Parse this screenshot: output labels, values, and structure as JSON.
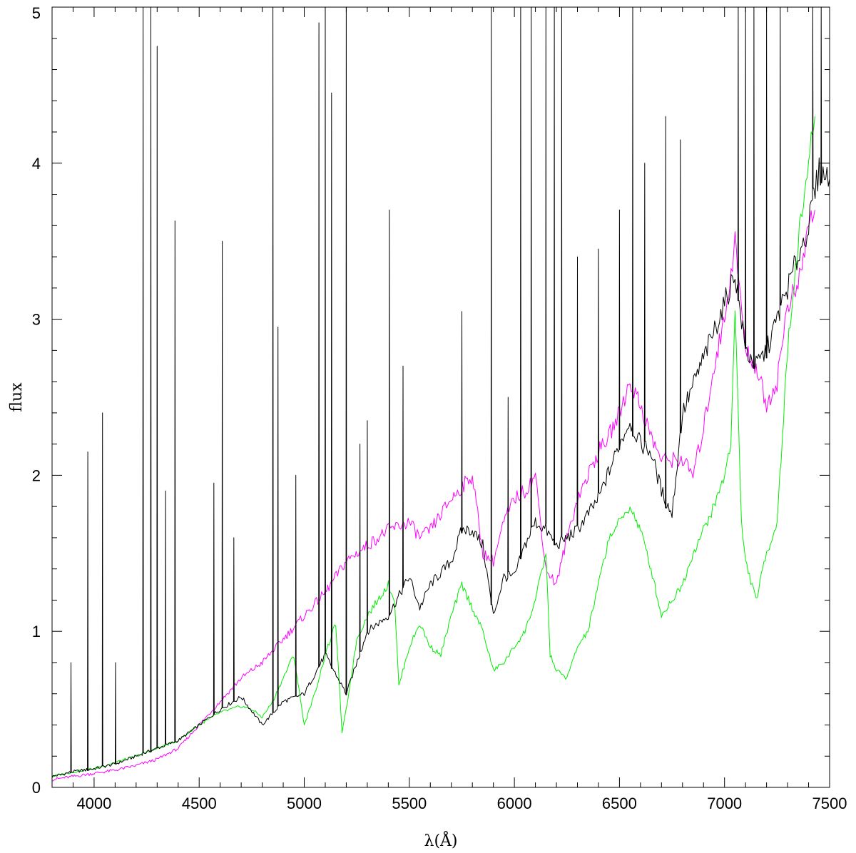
{
  "chart_data": {
    "type": "line",
    "xlabel": "λ(Å)",
    "ylabel": "flux",
    "xlim": [
      3800,
      7500
    ],
    "ylim": [
      0,
      5
    ],
    "x_ticks": [
      4000,
      4500,
      5000,
      5500,
      6000,
      6500,
      7000,
      7500
    ],
    "y_ticks": [
      0,
      1,
      2,
      3,
      4,
      5
    ],
    "grid": false,
    "legend": "none",
    "series": [
      {
        "color": "#000000",
        "style": "solid with many narrow emission spikes",
        "x": [
          3800,
          3900,
          4000,
          4100,
          4200,
          4300,
          4400,
          4500,
          4600,
          4700,
          4800,
          4900,
          5000,
          5100,
          5200,
          5300,
          5400,
          5500,
          5550,
          5600,
          5700,
          5750,
          5800,
          5850,
          5900,
          5950,
          6000,
          6050,
          6100,
          6150,
          6200,
          6250,
          6300,
          6400,
          6500,
          6550,
          6600,
          6650,
          6700,
          6750,
          6800,
          6900,
          7000,
          7050,
          7100,
          7150,
          7200,
          7250,
          7300,
          7350,
          7400,
          7450,
          7500
        ],
        "y": [
          0.07,
          0.1,
          0.12,
          0.15,
          0.2,
          0.25,
          0.3,
          0.4,
          0.5,
          0.58,
          0.4,
          0.55,
          0.6,
          0.85,
          0.6,
          1.0,
          1.1,
          1.35,
          1.15,
          1.3,
          1.45,
          1.65,
          1.65,
          1.55,
          1.1,
          1.35,
          1.35,
          1.55,
          1.7,
          1.65,
          1.55,
          1.6,
          1.65,
          1.85,
          2.2,
          2.35,
          2.2,
          2.15,
          1.9,
          1.75,
          2.4,
          2.75,
          3.1,
          3.3,
          2.8,
          2.7,
          2.8,
          3.0,
          3.2,
          3.4,
          3.6,
          3.95,
          3.9
        ],
        "spikes": [
          {
            "x": 3890,
            "y": 0.8
          },
          {
            "x": 3970,
            "y": 2.15
          },
          {
            "x": 4040,
            "y": 2.4
          },
          {
            "x": 4102,
            "y": 0.8
          },
          {
            "x": 4233,
            "y": 5.0
          },
          {
            "x": 4270,
            "y": 5.0
          },
          {
            "x": 4300,
            "y": 4.75
          },
          {
            "x": 4340,
            "y": 1.9
          },
          {
            "x": 4385,
            "y": 3.63
          },
          {
            "x": 4570,
            "y": 1.95
          },
          {
            "x": 4610,
            "y": 3.5
          },
          {
            "x": 4665,
            "y": 1.6
          },
          {
            "x": 4851,
            "y": 5.0
          },
          {
            "x": 4875,
            "y": 2.95
          },
          {
            "x": 4960,
            "y": 2.0
          },
          {
            "x": 5070,
            "y": 4.9
          },
          {
            "x": 5100,
            "y": 5.0
          },
          {
            "x": 5130,
            "y": 4.45
          },
          {
            "x": 5200,
            "y": 5.0
          },
          {
            "x": 5265,
            "y": 2.2
          },
          {
            "x": 5300,
            "y": 2.35
          },
          {
            "x": 5405,
            "y": 3.7
          },
          {
            "x": 5470,
            "y": 2.7
          },
          {
            "x": 5750,
            "y": 3.05
          },
          {
            "x": 5890,
            "y": 5.0
          },
          {
            "x": 5970,
            "y": 2.5
          },
          {
            "x": 6030,
            "y": 5.0
          },
          {
            "x": 6080,
            "y": 5.0
          },
          {
            "x": 6150,
            "y": 5.0
          },
          {
            "x": 6190,
            "y": 5.0
          },
          {
            "x": 6225,
            "y": 5.0
          },
          {
            "x": 6300,
            "y": 3.4
          },
          {
            "x": 6400,
            "y": 3.45
          },
          {
            "x": 6500,
            "y": 3.7
          },
          {
            "x": 6563,
            "y": 5.0
          },
          {
            "x": 6620,
            "y": 4.0
          },
          {
            "x": 6720,
            "y": 4.3
          },
          {
            "x": 6790,
            "y": 4.15
          },
          {
            "x": 7065,
            "y": 5.0
          },
          {
            "x": 7100,
            "y": 5.0
          },
          {
            "x": 7140,
            "y": 5.0
          },
          {
            "x": 7200,
            "y": 5.0
          },
          {
            "x": 7265,
            "y": 5.0
          },
          {
            "x": 7420,
            "y": 5.0
          },
          {
            "x": 7460,
            "y": 5.0
          }
        ]
      },
      {
        "color": "#ff00ff",
        "x": [
          3800,
          3900,
          4000,
          4100,
          4200,
          4300,
          4400,
          4500,
          4600,
          4700,
          4800,
          4900,
          5000,
          5100,
          5200,
          5300,
          5400,
          5500,
          5550,
          5600,
          5700,
          5800,
          5850,
          5900,
          5950,
          6000,
          6050,
          6100,
          6150,
          6200,
          6250,
          6300,
          6350,
          6400,
          6450,
          6500,
          6550,
          6600,
          6650,
          6700,
          6750,
          6800,
          6850,
          6900,
          6950,
          7000,
          7050,
          7100,
          7150,
          7200,
          7250,
          7300,
          7350,
          7400,
          7430
        ],
        "y": [
          0.05,
          0.07,
          0.09,
          0.11,
          0.14,
          0.18,
          0.25,
          0.4,
          0.55,
          0.7,
          0.8,
          0.95,
          1.1,
          1.25,
          1.45,
          1.55,
          1.65,
          1.7,
          1.6,
          1.65,
          1.85,
          2.0,
          1.5,
          1.45,
          1.7,
          1.85,
          1.9,
          2.0,
          1.4,
          1.3,
          1.6,
          1.85,
          2.0,
          2.15,
          2.25,
          2.4,
          2.6,
          2.45,
          2.25,
          2.1,
          2.1,
          2.1,
          2.0,
          2.3,
          2.7,
          3.0,
          3.5,
          2.8,
          2.7,
          2.45,
          2.6,
          3.1,
          3.2,
          3.6,
          3.7
        ]
      },
      {
        "color": "#00ee00",
        "x": [
          3800,
          3900,
          4000,
          4100,
          4200,
          4300,
          4400,
          4500,
          4600,
          4700,
          4750,
          4800,
          4850,
          4900,
          4950,
          5000,
          5050,
          5100,
          5150,
          5180,
          5200,
          5250,
          5300,
          5350,
          5400,
          5430,
          5450,
          5500,
          5550,
          5600,
          5650,
          5700,
          5750,
          5800,
          5850,
          5900,
          5950,
          6000,
          6050,
          6100,
          6150,
          6170,
          6200,
          6250,
          6300,
          6350,
          6400,
          6450,
          6500,
          6550,
          6600,
          6650,
          6700,
          6750,
          6800,
          6850,
          6900,
          6950,
          7000,
          7030,
          7050,
          7080,
          7100,
          7150,
          7200,
          7250,
          7300,
          7350,
          7400,
          7430
        ],
        "y": [
          0.07,
          0.1,
          0.12,
          0.16,
          0.2,
          0.25,
          0.3,
          0.4,
          0.48,
          0.52,
          0.5,
          0.45,
          0.55,
          0.7,
          0.85,
          0.4,
          0.6,
          0.85,
          1.05,
          0.35,
          0.5,
          0.95,
          1.1,
          1.2,
          1.3,
          1.2,
          0.65,
          0.9,
          1.05,
          0.9,
          0.85,
          1.1,
          1.3,
          1.15,
          1.0,
          0.75,
          0.8,
          0.9,
          1.0,
          1.2,
          1.5,
          0.85,
          0.75,
          0.7,
          0.9,
          1.0,
          1.3,
          1.6,
          1.7,
          1.8,
          1.65,
          1.4,
          1.1,
          1.2,
          1.3,
          1.5,
          1.65,
          1.8,
          2.0,
          2.2,
          3.1,
          1.7,
          1.45,
          1.2,
          1.5,
          1.7,
          2.8,
          3.5,
          4.0,
          4.3
        ]
      }
    ]
  }
}
